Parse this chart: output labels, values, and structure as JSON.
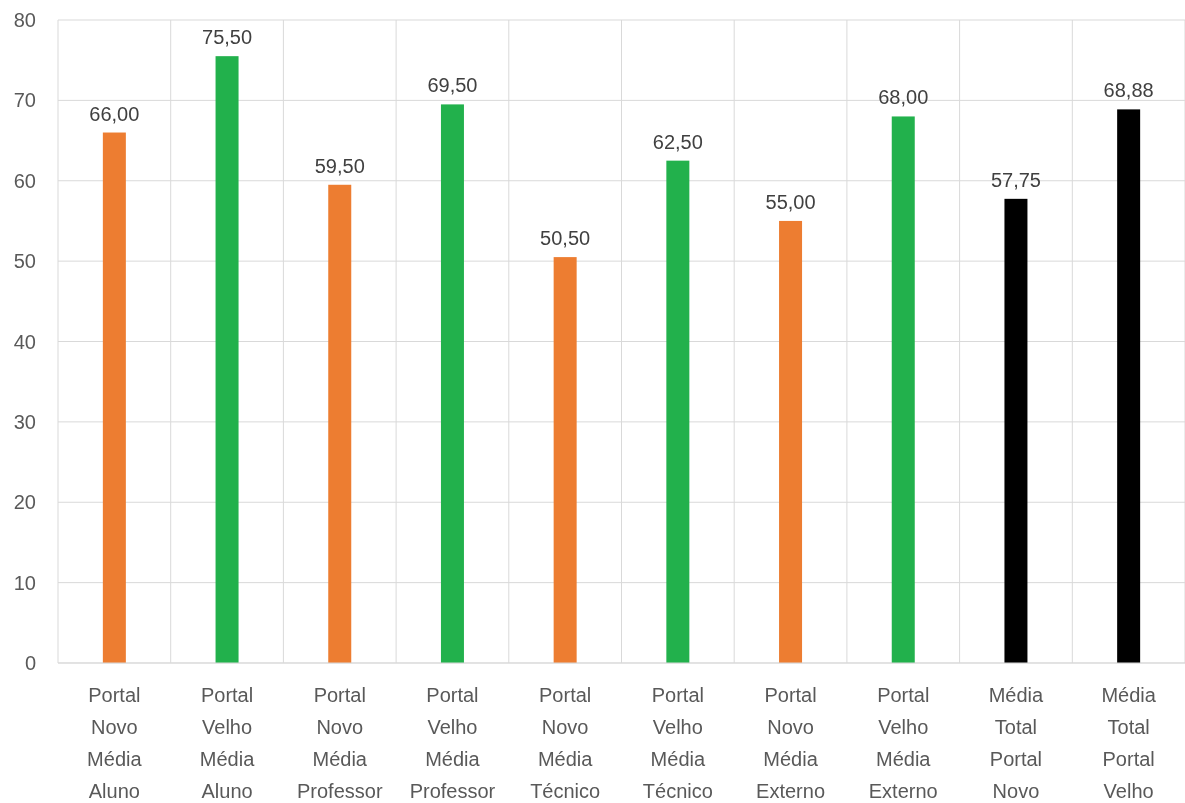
{
  "chart_data": {
    "type": "bar",
    "categories": [
      "Portal Novo Média Aluno",
      "Portal Velho Média Aluno",
      "Portal Novo Média Professor",
      "Portal Velho Média Professor",
      "Portal Novo Média Técnico",
      "Portal Velho Média Técnico",
      "Portal Novo Média Externo",
      "Portal Velho Média Externo",
      "Média Total Portal Novo",
      "Média Total Portal Velho"
    ],
    "values": [
      66.0,
      75.5,
      59.5,
      69.5,
      50.5,
      62.5,
      55.0,
      68.0,
      57.75,
      68.88
    ],
    "colors": [
      "#ed7d31",
      "#22b14c",
      "#ed7d31",
      "#22b14c",
      "#ed7d31",
      "#22b14c",
      "#ed7d31",
      "#22b14c",
      "#000000",
      "#000000"
    ],
    "value_labels": [
      "66,00",
      "75,50",
      "59,50",
      "69,50",
      "50,50",
      "62,50",
      "55,00",
      "68,00",
      "57,75",
      "68,88"
    ],
    "ylim": [
      0,
      80
    ],
    "yticks": [
      0,
      10,
      20,
      30,
      40,
      50,
      60,
      70,
      80
    ],
    "grid": true
  }
}
